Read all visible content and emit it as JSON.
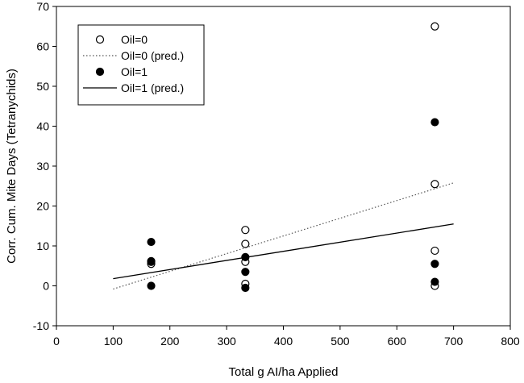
{
  "chart_data": {
    "type": "scatter",
    "title": "",
    "xlabel": "Total g AI/ha Applied",
    "ylabel": "Corr. Cum. Mite Days (Tetranychids)",
    "xlim": [
      0,
      800
    ],
    "ylim": [
      -10,
      70
    ],
    "xticks": [
      0,
      100,
      200,
      300,
      400,
      500,
      600,
      700,
      800
    ],
    "yticks": [
      -10,
      0,
      10,
      20,
      30,
      40,
      50,
      60,
      70
    ],
    "grid": false,
    "legend_position": "top-left",
    "series": [
      {
        "name": "Oil=0",
        "kind": "points",
        "marker": "open-circle",
        "color": "#000000",
        "points": [
          [
            167,
            5.5
          ],
          [
            167,
            6.0
          ],
          [
            333,
            14.0
          ],
          [
            333,
            10.5
          ],
          [
            333,
            6.0
          ],
          [
            333,
            0.5
          ],
          [
            667,
            65.0
          ],
          [
            667,
            25.5
          ],
          [
            667,
            8.8
          ],
          [
            667,
            0.0
          ]
        ]
      },
      {
        "name": "Oil=0 (pred.)",
        "kind": "line",
        "dash": "dotted",
        "color": "#555555",
        "points": [
          [
            100,
            -0.8
          ],
          [
            700,
            25.8
          ]
        ]
      },
      {
        "name": "Oil=1",
        "kind": "points",
        "marker": "filled-circle",
        "color": "#000000",
        "points": [
          [
            167,
            11.0
          ],
          [
            167,
            6.2
          ],
          [
            167,
            0.0
          ],
          [
            333,
            7.2
          ],
          [
            333,
            3.5
          ],
          [
            333,
            -0.5
          ],
          [
            667,
            41.0
          ],
          [
            667,
            5.5
          ],
          [
            667,
            1.0
          ]
        ]
      },
      {
        "name": "Oil=1 (pred.)",
        "kind": "line",
        "dash": "solid",
        "color": "#000000",
        "points": [
          [
            100,
            1.8
          ],
          [
            700,
            15.5
          ]
        ]
      }
    ]
  }
}
